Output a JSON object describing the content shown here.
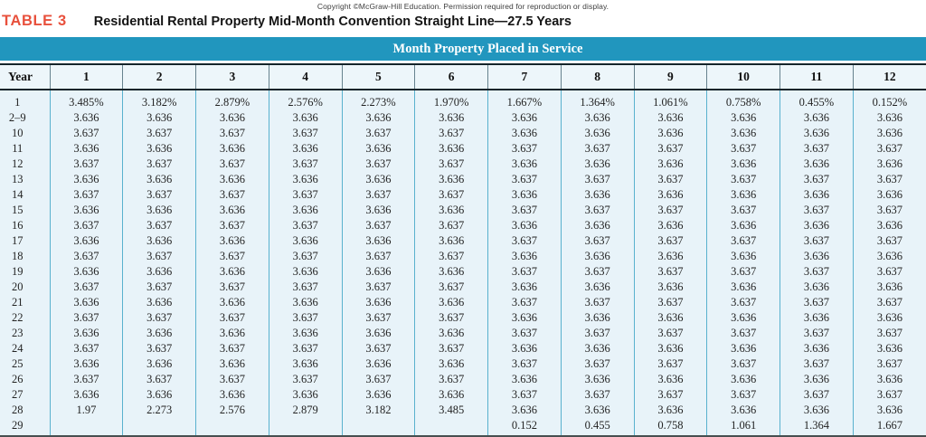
{
  "copyright": "Copyright ©McGraw-Hill Education. Permission required for reproduction or display.",
  "table_label": "TABLE 3",
  "title": "Residential Rental Property Mid-Month Convention Straight Line—27.5 Years",
  "banner": "Month Property Placed in Service",
  "colors": {
    "banner_teal": "#2196be",
    "body_light_blue": "#e8f3f9",
    "label_red": "#e8503c",
    "body_divider_teal": "#59b1ce",
    "header_divider_gray": "#66828e",
    "rule_black": "#14242a"
  },
  "table": {
    "year_header": "Year",
    "month_headers": [
      "1",
      "2",
      "3",
      "4",
      "5",
      "6",
      "7",
      "8",
      "9",
      "10",
      "11",
      "12"
    ],
    "rows": [
      {
        "year": "1",
        "values": [
          "3.485%",
          "3.182%",
          "2.879%",
          "2.576%",
          "2.273%",
          "1.970%",
          "1.667%",
          "1.364%",
          "1.061%",
          "0.758%",
          "0.455%",
          "0.152%"
        ]
      },
      {
        "year": "2–9",
        "values": [
          "3.636",
          "3.636",
          "3.636",
          "3.636",
          "3.636",
          "3.636",
          "3.636",
          "3.636",
          "3.636",
          "3.636",
          "3.636",
          "3.636"
        ]
      },
      {
        "year": "10",
        "values": [
          "3.637",
          "3.637",
          "3.637",
          "3.637",
          "3.637",
          "3.637",
          "3.636",
          "3.636",
          "3.636",
          "3.636",
          "3.636",
          "3.636"
        ]
      },
      {
        "year": "11",
        "values": [
          "3.636",
          "3.636",
          "3.636",
          "3.636",
          "3.636",
          "3.636",
          "3.637",
          "3.637",
          "3.637",
          "3.637",
          "3.637",
          "3.637"
        ]
      },
      {
        "year": "12",
        "values": [
          "3.637",
          "3.637",
          "3.637",
          "3.637",
          "3.637",
          "3.637",
          "3.636",
          "3.636",
          "3.636",
          "3.636",
          "3.636",
          "3.636"
        ]
      },
      {
        "year": "13",
        "values": [
          "3.636",
          "3.636",
          "3.636",
          "3.636",
          "3.636",
          "3.636",
          "3.637",
          "3.637",
          "3.637",
          "3.637",
          "3.637",
          "3.637"
        ]
      },
      {
        "year": "14",
        "values": [
          "3.637",
          "3.637",
          "3.637",
          "3.637",
          "3.637",
          "3.637",
          "3.636",
          "3.636",
          "3.636",
          "3.636",
          "3.636",
          "3.636"
        ]
      },
      {
        "year": "15",
        "values": [
          "3.636",
          "3.636",
          "3.636",
          "3.636",
          "3.636",
          "3.636",
          "3.637",
          "3.637",
          "3.637",
          "3.637",
          "3.637",
          "3.637"
        ]
      },
      {
        "year": "16",
        "values": [
          "3.637",
          "3.637",
          "3.637",
          "3.637",
          "3.637",
          "3.637",
          "3.636",
          "3.636",
          "3.636",
          "3.636",
          "3.636",
          "3.636"
        ]
      },
      {
        "year": "17",
        "values": [
          "3.636",
          "3.636",
          "3.636",
          "3.636",
          "3.636",
          "3.636",
          "3.637",
          "3.637",
          "3.637",
          "3.637",
          "3.637",
          "3.637"
        ]
      },
      {
        "year": "18",
        "values": [
          "3.637",
          "3.637",
          "3.637",
          "3.637",
          "3.637",
          "3.637",
          "3.636",
          "3.636",
          "3.636",
          "3.636",
          "3.636",
          "3.636"
        ]
      },
      {
        "year": "19",
        "values": [
          "3.636",
          "3.636",
          "3.636",
          "3.636",
          "3.636",
          "3.636",
          "3.637",
          "3.637",
          "3.637",
          "3.637",
          "3.637",
          "3.637"
        ]
      },
      {
        "year": "20",
        "values": [
          "3.637",
          "3.637",
          "3.637",
          "3.637",
          "3.637",
          "3.637",
          "3.636",
          "3.636",
          "3.636",
          "3.636",
          "3.636",
          "3.636"
        ]
      },
      {
        "year": "21",
        "values": [
          "3.636",
          "3.636",
          "3.636",
          "3.636",
          "3.636",
          "3.636",
          "3.637",
          "3.637",
          "3.637",
          "3.637",
          "3.637",
          "3.637"
        ]
      },
      {
        "year": "22",
        "values": [
          "3.637",
          "3.637",
          "3.637",
          "3.637",
          "3.637",
          "3.637",
          "3.636",
          "3.636",
          "3.636",
          "3.636",
          "3.636",
          "3.636"
        ]
      },
      {
        "year": "23",
        "values": [
          "3.636",
          "3.636",
          "3.636",
          "3.636",
          "3.636",
          "3.636",
          "3.637",
          "3.637",
          "3.637",
          "3.637",
          "3.637",
          "3.637"
        ]
      },
      {
        "year": "24",
        "values": [
          "3.637",
          "3.637",
          "3.637",
          "3.637",
          "3.637",
          "3.637",
          "3.636",
          "3.636",
          "3.636",
          "3.636",
          "3.636",
          "3.636"
        ]
      },
      {
        "year": "25",
        "values": [
          "3.636",
          "3.636",
          "3.636",
          "3.636",
          "3.636",
          "3.636",
          "3.637",
          "3.637",
          "3.637",
          "3.637",
          "3.637",
          "3.637"
        ]
      },
      {
        "year": "26",
        "values": [
          "3.637",
          "3.637",
          "3.637",
          "3.637",
          "3.637",
          "3.637",
          "3.636",
          "3.636",
          "3.636",
          "3.636",
          "3.636",
          "3.636"
        ]
      },
      {
        "year": "27",
        "values": [
          "3.636",
          "3.636",
          "3.636",
          "3.636",
          "3.636",
          "3.636",
          "3.637",
          "3.637",
          "3.637",
          "3.637",
          "3.637",
          "3.637"
        ]
      },
      {
        "year": "28",
        "values": [
          "1.97",
          "2.273",
          "2.576",
          "2.879",
          "3.182",
          "3.485",
          "3.636",
          "3.636",
          "3.636",
          "3.636",
          "3.636",
          "3.636"
        ]
      },
      {
        "year": "29",
        "values": [
          "",
          "",
          "",
          "",
          "",
          "",
          "0.152",
          "0.455",
          "0.758",
          "1.061",
          "1.364",
          "1.667"
        ]
      }
    ]
  }
}
